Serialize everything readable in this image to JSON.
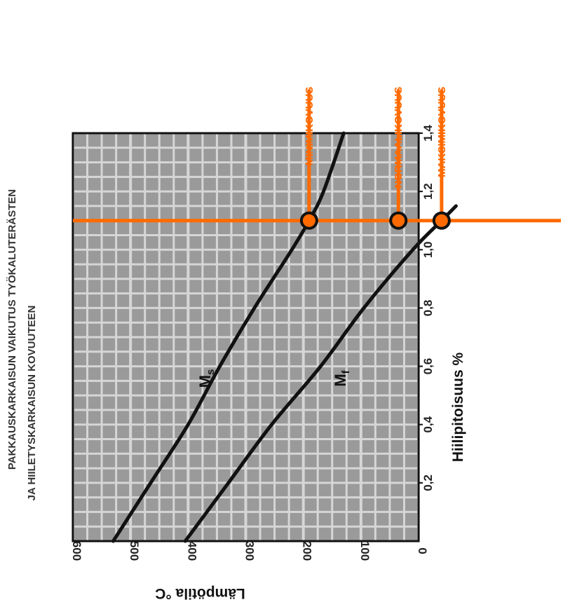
{
  "chart_data": {
    "type": "line",
    "title_lines": [
      "PAKKAUSKARKAISUN VAIKUTUS TYÖKALUTERÄSTEN",
      "JA HIILETYSKARKAISUN KOVUUTEEN"
    ],
    "xlabel": "Hiilipitoisuus %",
    "ylabel": "Lämpötila °C",
    "xlim": [
      0.0,
      1.4
    ],
    "ylim": [
      0,
      600
    ],
    "x_ticks": [
      "0,2",
      "0,4",
      "0,6",
      "0,8",
      "1,0",
      "1,2",
      "1,4"
    ],
    "y_ticks": [
      "0",
      "100",
      "200",
      "300",
      "400",
      "500",
      "600"
    ],
    "grid": true,
    "orientation": "rotated-90-clockwise",
    "series": [
      {
        "name": "Ms",
        "label_main": "M",
        "label_sub": "s",
        "color": "#111111",
        "x": [
          0.0,
          0.2,
          0.4,
          0.6,
          0.8,
          1.0,
          1.1,
          1.2,
          1.4
        ],
        "y": [
          530,
          465,
          400,
          345,
          285,
          220,
          190,
          165,
          130
        ]
      },
      {
        "name": "Mf",
        "label_main": "M",
        "label_sub": "f",
        "color": "#111111",
        "x": [
          0.0,
          0.2,
          0.4,
          0.6,
          0.8,
          1.0,
          1.1,
          1.15
        ],
        "y": [
          405,
          330,
          255,
          170,
          95,
          10,
          -40,
          -65
        ]
      }
    ],
    "reference_line": {
      "x": 1.1,
      "color": "#ff6a00"
    },
    "markers": [
      {
        "x": 1.1,
        "y": 190,
        "label": "MINIMIKOVUUS"
      },
      {
        "x": 1.1,
        "y": 35,
        "label": "NORMAALIKOVUUS"
      },
      {
        "x": 1.1,
        "y": -40,
        "label": "MAKSIMIKOVUUS"
      }
    ],
    "marker_label_x": 1.55,
    "colors": {
      "plot_bg": "#9a9a9a",
      "grid": "#d6d6d6",
      "accent": "#ff6a00"
    }
  }
}
